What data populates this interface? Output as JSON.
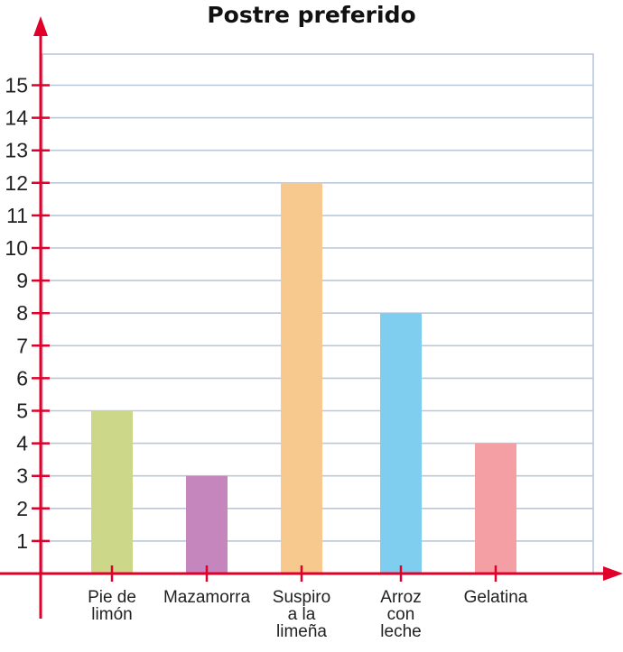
{
  "chart_data": {
    "type": "bar",
    "title": "Postre preferido",
    "categories": [
      [
        "Pie de",
        "limón"
      ],
      [
        "Mazamorra"
      ],
      [
        "Suspiro",
        "a la",
        "limeña"
      ],
      [
        "Arroz",
        "con",
        "leche"
      ],
      [
        "Gelatina"
      ]
    ],
    "values": [
      5,
      3,
      12,
      8,
      4
    ],
    "colors": [
      "#cdd78a",
      "#c585bd",
      "#f7c98e",
      "#80ceef",
      "#f49fa4"
    ],
    "ylim": [
      0,
      15
    ],
    "yticks": [
      "1",
      "2",
      "3",
      "4",
      "5",
      "6",
      "7",
      "8",
      "9",
      "10",
      "11",
      "12",
      "13",
      "14",
      "15"
    ],
    "xlabel": "",
    "ylabel": "",
    "grid": true,
    "axis_color": "#e0002a",
    "grid_color": "#b9c8d9"
  }
}
